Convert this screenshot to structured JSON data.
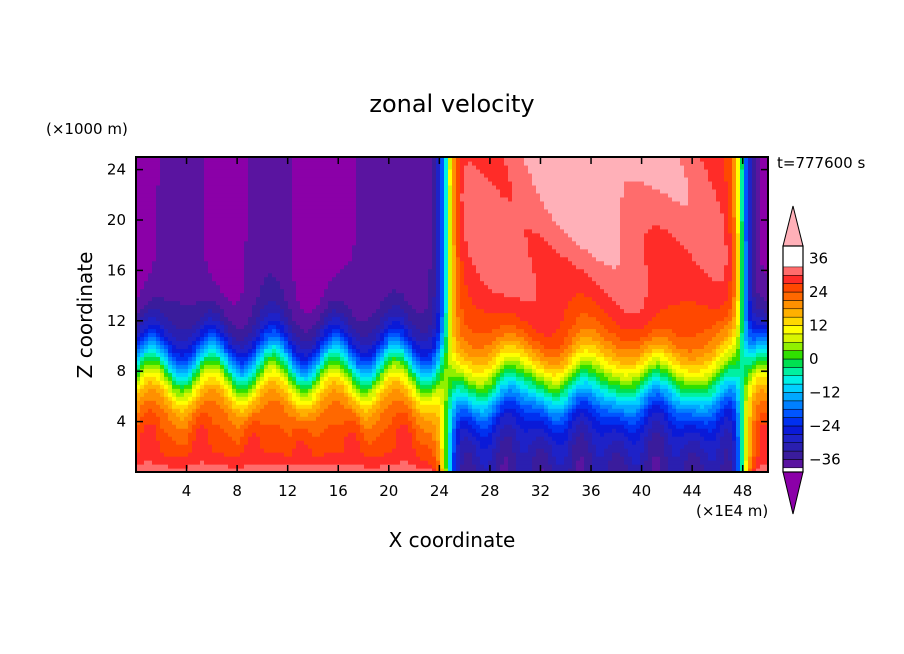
{
  "chart_data": {
    "type": "heatmap",
    "title": "zonal velocity",
    "xlabel": "X coordinate",
    "ylabel": "Z coordinate",
    "x_unit": "(×1E4 m)",
    "y_unit": "(×1000 m)",
    "time_label": "t=777600 s",
    "xlim": [
      0,
      50
    ],
    "ylim": [
      0,
      25
    ],
    "xticks": [
      4,
      8,
      12,
      16,
      20,
      24,
      28,
      32,
      36,
      40,
      44,
      48
    ],
    "yticks": [
      4,
      8,
      12,
      16,
      20,
      24
    ],
    "colorbar": {
      "levels": [
        -42,
        -39,
        -36,
        -33,
        -30,
        -27,
        -24,
        -21,
        -18,
        -15,
        -12,
        -9,
        -6,
        -3,
        0,
        3,
        6,
        9,
        12,
        15,
        18,
        21,
        24,
        27,
        30,
        33,
        36,
        39,
        42
      ],
      "tick_labels": [
        "36",
        "24",
        "12",
        "0",
        "−12",
        "−24",
        "−36"
      ],
      "tick_values": [
        36,
        24,
        12,
        0,
        -12,
        -24,
        -36
      ],
      "colors": [
        "#8b00a8",
        "#5a14a0",
        "#3a1c9c",
        "#2a1fb0",
        "#1e22c8",
        "#0a1ad8",
        "#0030f0",
        "#0055ff",
        "#0080ff",
        "#00a8ff",
        "#00d0ff",
        "#00f0e6",
        "#00f0a0",
        "#00e050",
        "#30e000",
        "#90f000",
        "#d8f500",
        "#ffff00",
        "#ffd800",
        "#ffb000",
        "#ff9000",
        "#ff6800",
        "#ff4800",
        "#ff2c28",
        "#ff6c6c",
        "#ffb0b8"
      ]
    },
    "field_description": "western half (x<24): negative aloft (~-30 to -40 above z=12), strong positive near surface (z<4) with convective spikes; eastern half (24<x<48): positive aloft (~30 to 42 above z=14), negative near surface (~-30 below z=2); sharp transitions near x=24 and x=48"
  }
}
